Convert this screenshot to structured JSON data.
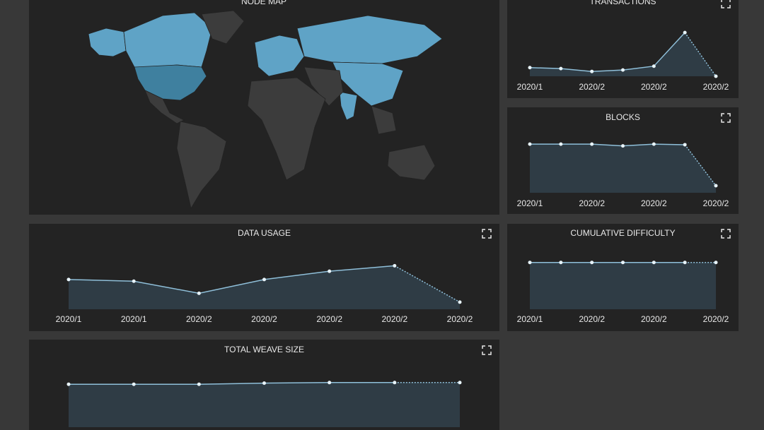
{
  "node_map": {
    "title": "NODE MAP"
  },
  "chart_data": [
    {
      "type": "area",
      "title": "TRANSACTIONS",
      "categories": [
        "2020/1",
        null,
        "2020/2",
        null,
        "2020/2",
        null,
        "2020/2"
      ],
      "values": [
        18,
        16,
        10,
        13,
        21,
        91,
        0
      ],
      "ylim": [
        0,
        100
      ],
      "color": "#8fbfd9"
    },
    {
      "type": "area",
      "title": "BLOCKS",
      "categories": [
        "2020/1",
        null,
        "2020/2",
        null,
        "2020/2",
        null,
        "2020/2"
      ],
      "values": [
        83,
        83,
        83,
        80,
        83,
        82,
        12
      ],
      "ylim": [
        0,
        100
      ],
      "color": "#8fbfd9"
    },
    {
      "type": "area",
      "title": "DATA USAGE",
      "categories": [
        "2020/1",
        "2020/1",
        "2020/2",
        "2020/2",
        "2020/2",
        "2020/2",
        "2020/2"
      ],
      "values": [
        54,
        51,
        29,
        54,
        69,
        79,
        13
      ],
      "ylim": [
        0,
        100
      ],
      "color": "#8fbfd9"
    },
    {
      "type": "area",
      "title": "CUMULATIVE DIFFICULTY",
      "categories": [
        "2020/1",
        null,
        "2020/2",
        null,
        "2020/2",
        null,
        "2020/2"
      ],
      "values": [
        85,
        85,
        85,
        85,
        85,
        85,
        85
      ],
      "ylim": [
        0,
        100
      ],
      "color": "#8fbfd9"
    },
    {
      "type": "area",
      "title": "TOTAL WEAVE SIZE",
      "categories": [
        null,
        null,
        null,
        null,
        null,
        null,
        null
      ],
      "values": [
        76,
        76,
        76,
        78,
        79,
        79,
        79
      ],
      "ylim": [
        0,
        100
      ],
      "color": "#8fbfd9"
    }
  ]
}
